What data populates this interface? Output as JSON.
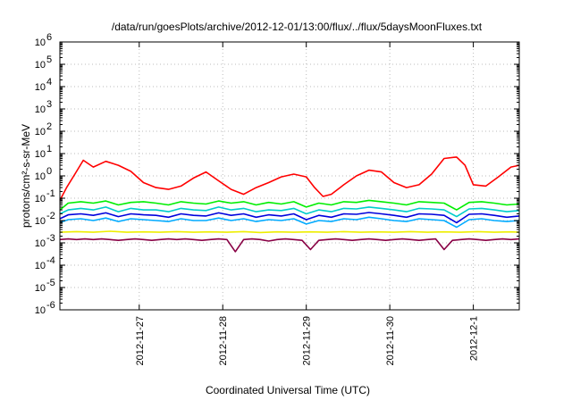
{
  "chart_data": {
    "type": "line",
    "title": "/data/run/goesPlots/archive/2012-12-01/13:00/flux/../flux/5daysMoonFluxes.txt",
    "xlabel": "Coordinated Universal Time (UTC)",
    "ylabel": "protons/cm²-s-sr-MeV",
    "yscale": "log",
    "ylim": [
      1e-06,
      1000000
    ],
    "xlim_days": [
      0,
      5.5
    ],
    "x_ticks": [
      {
        "label": "2012-11-27",
        "day": 0.95
      },
      {
        "label": "2012-11-28",
        "day": 1.95
      },
      {
        "label": "2012-11-29",
        "day": 2.95
      },
      {
        "label": "2012-11-30",
        "day": 3.95
      },
      {
        "label": "2012-12-1",
        "day": 4.95
      }
    ],
    "y_ticks": [
      {
        "base": "10",
        "exp": "-6",
        "value": 1e-06
      },
      {
        "base": "10",
        "exp": "-5",
        "value": 1e-05
      },
      {
        "base": "10",
        "exp": "-4",
        "value": 0.0001
      },
      {
        "base": "10",
        "exp": "-3",
        "value": 0.001
      },
      {
        "base": "10",
        "exp": "-2",
        "value": 0.01
      },
      {
        "base": "10",
        "exp": "-1",
        "value": 0.1
      },
      {
        "base": "10",
        "exp": "0",
        "value": 1
      },
      {
        "base": "10",
        "exp": "1",
        "value": 10
      },
      {
        "base": "10",
        "exp": "2",
        "value": 100
      },
      {
        "base": "10",
        "exp": "3",
        "value": 1000
      },
      {
        "base": "10",
        "exp": "4",
        "value": 10000
      },
      {
        "base": "10",
        "exp": "5",
        "value": 100000
      },
      {
        "base": "10",
        "exp": "6",
        "value": 1000000
      }
    ],
    "grid": true,
    "series": [
      {
        "color": "#ff0000",
        "x": [
          0,
          0.08,
          0.18,
          0.28,
          0.4,
          0.55,
          0.7,
          0.85,
          1.0,
          1.15,
          1.3,
          1.45,
          1.6,
          1.75,
          1.9,
          2.05,
          2.2,
          2.35,
          2.5,
          2.65,
          2.8,
          2.95,
          3.05,
          3.15,
          3.25,
          3.4,
          3.55,
          3.7,
          3.85,
          4.0,
          4.15,
          4.3,
          4.45,
          4.6,
          4.75,
          4.85,
          4.95,
          5.1,
          5.25,
          5.4,
          5.5
        ],
        "values": [
          0.08,
          0.3,
          1.2,
          5.0,
          2.5,
          4.5,
          3.0,
          1.6,
          0.5,
          0.3,
          0.25,
          0.35,
          0.8,
          1.5,
          0.6,
          0.25,
          0.15,
          0.3,
          0.5,
          0.9,
          1.2,
          0.9,
          0.3,
          0.12,
          0.15,
          0.4,
          1.0,
          1.8,
          1.5,
          0.5,
          0.3,
          0.4,
          1.2,
          6.0,
          7.0,
          3.0,
          0.4,
          0.35,
          0.9,
          2.5,
          3.0
        ]
      },
      {
        "color": "#00ee00",
        "x": [
          0,
          0.1,
          0.25,
          0.4,
          0.55,
          0.7,
          0.85,
          1.0,
          1.15,
          1.3,
          1.45,
          1.6,
          1.75,
          1.9,
          2.05,
          2.2,
          2.35,
          2.5,
          2.65,
          2.8,
          2.95,
          3.1,
          3.25,
          3.4,
          3.55,
          3.7,
          3.85,
          4.0,
          4.15,
          4.3,
          4.45,
          4.6,
          4.75,
          4.9,
          5.05,
          5.2,
          5.35,
          5.5
        ],
        "values": [
          0.03,
          0.06,
          0.07,
          0.06,
          0.075,
          0.05,
          0.065,
          0.07,
          0.06,
          0.05,
          0.07,
          0.06,
          0.055,
          0.075,
          0.06,
          0.07,
          0.05,
          0.065,
          0.055,
          0.07,
          0.04,
          0.06,
          0.05,
          0.07,
          0.065,
          0.08,
          0.07,
          0.06,
          0.05,
          0.07,
          0.065,
          0.06,
          0.03,
          0.065,
          0.07,
          0.06,
          0.05,
          0.055
        ]
      },
      {
        "color": "#00cccc",
        "x": [
          0,
          0.1,
          0.25,
          0.4,
          0.55,
          0.7,
          0.85,
          1.0,
          1.15,
          1.3,
          1.45,
          1.6,
          1.75,
          1.9,
          2.05,
          2.2,
          2.35,
          2.5,
          2.65,
          2.8,
          2.95,
          3.1,
          3.25,
          3.4,
          3.55,
          3.7,
          3.85,
          4.0,
          4.15,
          4.3,
          4.45,
          4.6,
          4.75,
          4.9,
          5.05,
          5.2,
          5.35,
          5.5
        ],
        "values": [
          0.02,
          0.03,
          0.035,
          0.03,
          0.04,
          0.025,
          0.035,
          0.03,
          0.03,
          0.025,
          0.035,
          0.03,
          0.028,
          0.04,
          0.03,
          0.035,
          0.025,
          0.03,
          0.028,
          0.035,
          0.02,
          0.03,
          0.025,
          0.035,
          0.033,
          0.04,
          0.035,
          0.03,
          0.025,
          0.035,
          0.033,
          0.03,
          0.015,
          0.033,
          0.035,
          0.03,
          0.025,
          0.028
        ]
      },
      {
        "color": "#0000dd",
        "x": [
          0,
          0.1,
          0.25,
          0.4,
          0.55,
          0.7,
          0.85,
          1.0,
          1.15,
          1.3,
          1.45,
          1.6,
          1.75,
          1.9,
          2.05,
          2.2,
          2.35,
          2.5,
          2.65,
          2.8,
          2.95,
          3.1,
          3.25,
          3.4,
          3.55,
          3.7,
          3.85,
          4.0,
          4.15,
          4.3,
          4.45,
          4.6,
          4.75,
          4.9,
          5.05,
          5.2,
          5.35,
          5.5
        ],
        "values": [
          0.012,
          0.018,
          0.02,
          0.017,
          0.022,
          0.015,
          0.02,
          0.018,
          0.017,
          0.014,
          0.02,
          0.017,
          0.016,
          0.022,
          0.017,
          0.02,
          0.014,
          0.018,
          0.016,
          0.02,
          0.011,
          0.017,
          0.014,
          0.02,
          0.019,
          0.023,
          0.02,
          0.017,
          0.014,
          0.02,
          0.019,
          0.017,
          0.008,
          0.019,
          0.02,
          0.017,
          0.014,
          0.016
        ]
      },
      {
        "color": "#00aaff",
        "x": [
          0,
          0.1,
          0.25,
          0.4,
          0.55,
          0.7,
          0.85,
          1.0,
          1.15,
          1.3,
          1.45,
          1.6,
          1.75,
          1.9,
          2.05,
          2.2,
          2.35,
          2.5,
          2.65,
          2.8,
          2.95,
          3.1,
          3.25,
          3.4,
          3.55,
          3.7,
          3.85,
          4.0,
          4.15,
          4.3,
          4.45,
          4.6,
          4.75,
          4.9,
          5.05,
          5.2,
          5.35,
          5.5
        ],
        "values": [
          0.008,
          0.011,
          0.012,
          0.01,
          0.013,
          0.009,
          0.012,
          0.011,
          0.01,
          0.009,
          0.012,
          0.01,
          0.01,
          0.013,
          0.01,
          0.012,
          0.009,
          0.011,
          0.01,
          0.012,
          0.007,
          0.01,
          0.009,
          0.012,
          0.011,
          0.014,
          0.012,
          0.01,
          0.009,
          0.012,
          0.011,
          0.01,
          0.005,
          0.011,
          0.012,
          0.01,
          0.009,
          0.01
        ]
      },
      {
        "color": "#eeee00",
        "x": [
          0,
          0.2,
          0.4,
          0.6,
          0.8,
          1.0,
          1.2,
          1.4,
          1.6,
          1.8,
          2.0,
          2.2,
          2.4,
          2.6,
          2.8,
          3.0,
          3.2,
          3.4,
          3.6,
          3.8,
          4.0,
          4.2,
          4.4,
          4.6,
          4.8,
          5.0,
          5.2,
          5.4,
          5.5
        ],
        "values": [
          0.003,
          0.0032,
          0.003,
          0.0033,
          0.003,
          0.0031,
          0.003,
          0.0032,
          0.003,
          0.0031,
          0.003,
          0.0032,
          0.0029,
          0.0031,
          0.003,
          0.0031,
          0.003,
          0.0032,
          0.003,
          0.0031,
          0.003,
          0.0032,
          0.003,
          0.0031,
          0.003,
          0.0032,
          0.003,
          0.0031,
          0.003
        ]
      },
      {
        "color": "#880044",
        "x": [
          0,
          0.1,
          0.2,
          0.3,
          0.4,
          0.5,
          0.6,
          0.7,
          0.8,
          0.9,
          1.0,
          1.1,
          1.2,
          1.3,
          1.4,
          1.5,
          1.6,
          1.7,
          1.8,
          1.9,
          2.0,
          2.1,
          2.2,
          2.3,
          2.4,
          2.5,
          2.6,
          2.7,
          2.8,
          2.9,
          3.0,
          3.1,
          3.2,
          3.3,
          3.4,
          3.5,
          3.6,
          3.7,
          3.8,
          3.9,
          4.0,
          4.1,
          4.2,
          4.3,
          4.4,
          4.5,
          4.6,
          4.7,
          4.8,
          4.9,
          5.0,
          5.1,
          5.2,
          5.3,
          5.4,
          5.5
        ],
        "values": [
          0.0014,
          0.0015,
          0.0014,
          0.0015,
          0.0014,
          0.0015,
          0.0014,
          0.0013,
          0.0014,
          0.0015,
          0.0014,
          0.0013,
          0.0014,
          0.0015,
          0.0014,
          0.0015,
          0.0014,
          0.0013,
          0.0014,
          0.0015,
          0.0014,
          0.0004,
          0.0014,
          0.0015,
          0.0014,
          0.0012,
          0.0014,
          0.0015,
          0.0014,
          0.0013,
          0.0005,
          0.0013,
          0.0014,
          0.0015,
          0.0014,
          0.0013,
          0.0014,
          0.0015,
          0.0014,
          0.0013,
          0.0014,
          0.0015,
          0.0014,
          0.0013,
          0.0014,
          0.0015,
          0.0005,
          0.0013,
          0.0014,
          0.0015,
          0.0014,
          0.0013,
          0.0014,
          0.0015,
          0.0014,
          0.0015
        ]
      }
    ]
  }
}
